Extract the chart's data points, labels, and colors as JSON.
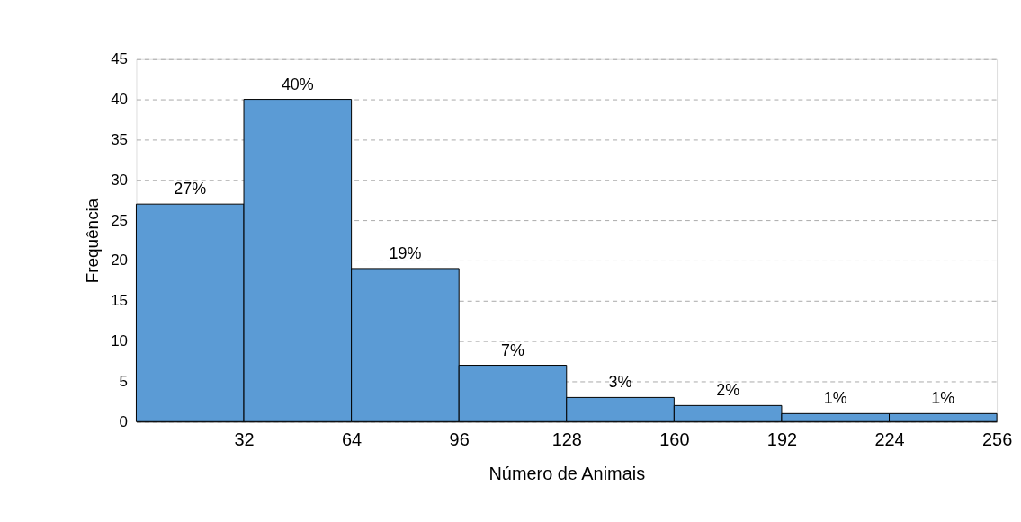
{
  "chart_data": {
    "type": "histogram",
    "xlabel": "Número de Animais",
    "ylabel": "Frequência",
    "bins": [
      0,
      32,
      64,
      96,
      128,
      160,
      192,
      224,
      256
    ],
    "values": [
      27,
      40,
      19,
      7,
      3,
      2,
      1,
      1
    ],
    "value_labels": [
      "27%",
      "40%",
      "19%",
      "7%",
      "3%",
      "2%",
      "1%",
      "1%"
    ],
    "color": "#5b9bd5",
    "xlim": [
      0,
      256
    ],
    "xticks": [
      32,
      64,
      96,
      128,
      160,
      192,
      224,
      256
    ],
    "ylim": [
      0,
      45
    ],
    "yticks": [
      0,
      5,
      10,
      15,
      20,
      25,
      30,
      35,
      40,
      45
    ],
    "grid": "y"
  }
}
